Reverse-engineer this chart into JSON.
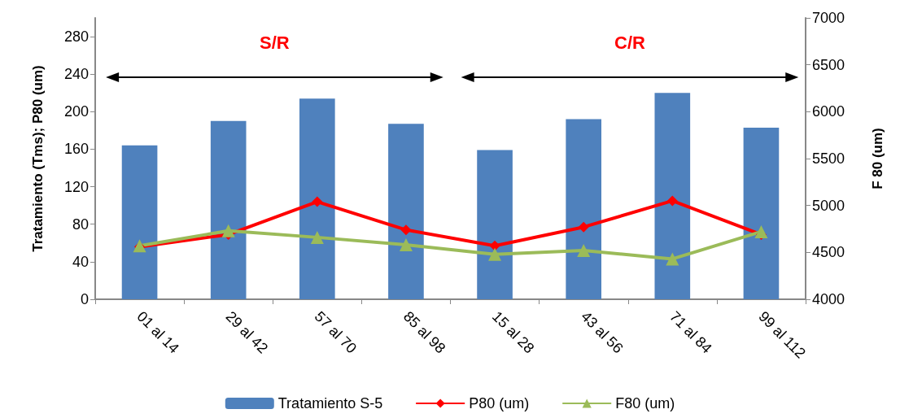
{
  "chart_data": {
    "type": "bar",
    "categories": [
      "01 al 14",
      "29 al 42",
      "57 al 70",
      "85 al 98",
      "15 al 28",
      "43 al 56",
      "71 al 84",
      "99 al 112"
    ],
    "series": [
      {
        "name": "Tratamiento S-5",
        "color": "#4f81bd",
        "values": [
          164,
          190,
          214,
          187,
          159,
          192,
          220,
          183
        ]
      },
      {
        "name": "P80 (um)",
        "type": "line",
        "color": "#ff0000",
        "marker": "diamond",
        "values": [
          56,
          69,
          104,
          74,
          57,
          77,
          105,
          69
        ]
      },
      {
        "name": "F80 (um)",
        "type": "line",
        "color": "#9bbb59",
        "marker": "triangle",
        "axis": "y2",
        "values": [
          4570,
          4730,
          4660,
          4580,
          4480,
          4520,
          4430,
          4720
        ]
      }
    ],
    "ylabel": "Tratamiento (Tms); P80 (um)",
    "y2label": "F 80 (um)",
    "ylim": [
      0,
      300
    ],
    "yticks": [
      0,
      40,
      80,
      120,
      160,
      200,
      240,
      280
    ],
    "y2lim": [
      4000,
      7000
    ],
    "y2ticks": [
      4000,
      4500,
      5000,
      5500,
      6000,
      6500,
      7000
    ],
    "annotations": [
      "S/R",
      "C/R"
    ],
    "legend": "bottom",
    "grid": false
  }
}
